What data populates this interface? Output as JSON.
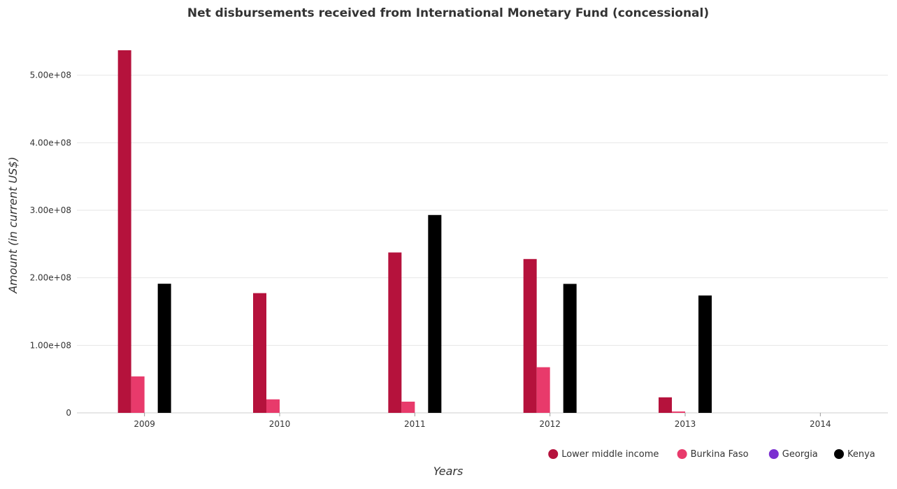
{
  "chart_data": {
    "type": "bar",
    "title": "Net disbursements received from International Monetary Fund (concessional)",
    "xlabel": "Years",
    "ylabel": "Amount (in current US$)",
    "categories": [
      "2009",
      "2010",
      "2011",
      "2012",
      "2013",
      "2014"
    ],
    "ylim": [
      0,
      570000000
    ],
    "yticks": [
      0,
      100000000,
      200000000,
      300000000,
      400000000,
      500000000
    ],
    "ytick_labels": [
      "0",
      "1.00e+08",
      "2.00e+08",
      "3.00e+08",
      "4.00e+08",
      "5.00e+08"
    ],
    "grid": true,
    "legend_position": "bottom-right",
    "series": [
      {
        "name": "Lower middle income",
        "color": "#b5123c",
        "values": [
          537000000,
          177300000,
          237500000,
          227800000,
          23000000,
          0
        ]
      },
      {
        "name": "Burkina Faso",
        "color": "#e83a6b",
        "values": [
          54000000,
          20000000,
          16600000,
          67600000,
          2000000,
          0
        ]
      },
      {
        "name": "Georgia",
        "color": "#7b2fd1",
        "values": [
          0,
          0,
          0,
          0,
          0,
          0
        ]
      },
      {
        "name": "Kenya",
        "color": "#000000",
        "values": [
          191200000,
          0,
          293000000,
          191000000,
          173800000,
          0
        ]
      }
    ]
  }
}
